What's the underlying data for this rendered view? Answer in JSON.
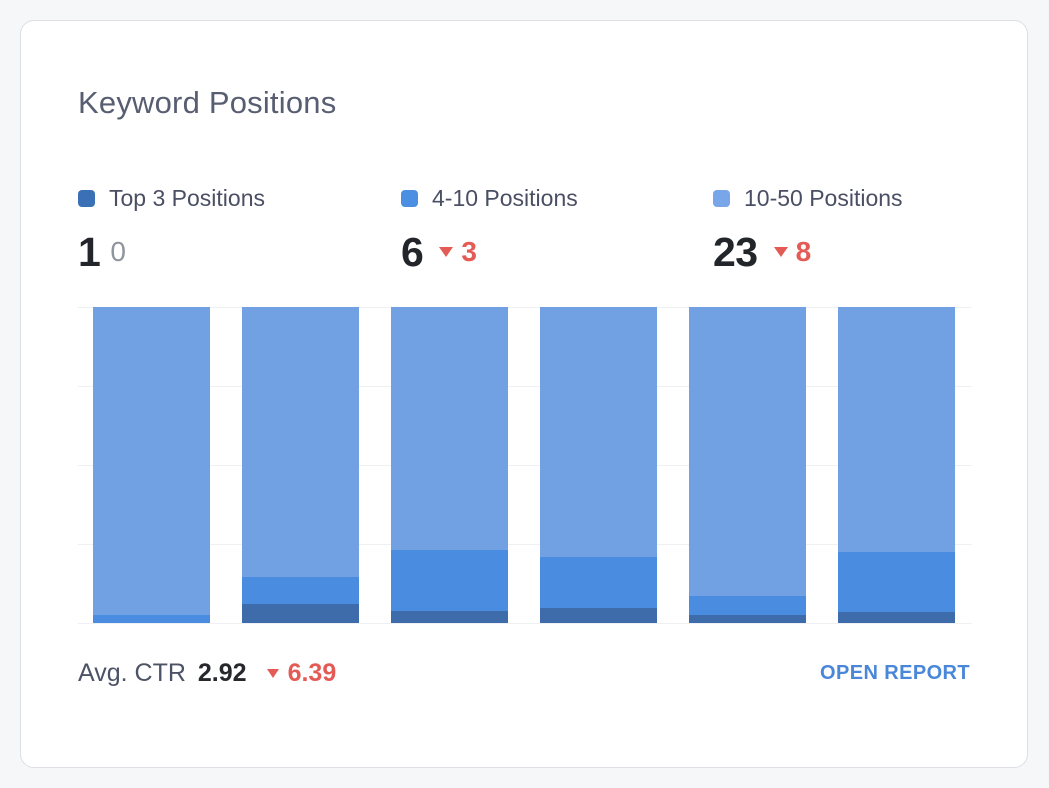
{
  "card": {
    "title": "Keyword Positions"
  },
  "legend": [
    {
      "label": "Top 3 Positions",
      "color": "#3a70b5"
    },
    {
      "label": "4-10 Positions",
      "color": "#4a8fe2"
    },
    {
      "label": "10-50 Positions",
      "color": "#78a6e8"
    }
  ],
  "stats": [
    {
      "value": "1",
      "change": "0",
      "direction": "none"
    },
    {
      "value": "6",
      "change": "3",
      "direction": "down"
    },
    {
      "value": "23",
      "change": "8",
      "direction": "down"
    }
  ],
  "footer": {
    "label": "Avg. CTR",
    "value": "2.92",
    "change": "6.39",
    "direction": "down",
    "link": "OPEN REPORT"
  },
  "colors": {
    "accent_blue": "#4a87d9",
    "negative_red": "#e45b55",
    "neutral_gray": "#8f959d"
  },
  "chart_data": {
    "type": "bar",
    "stacked": true,
    "title": "Keyword Positions",
    "xlabel": "",
    "ylabel": "",
    "axis_labels_visible": false,
    "grid": true,
    "gridline_count": 5,
    "legend_position": "top",
    "categories": [
      "bar-1",
      "bar-2",
      "bar-3",
      "bar-4",
      "bar-5",
      "bar-6"
    ],
    "series": [
      {
        "name": "Top 3 Positions",
        "color": "#3e6cab",
        "values_pct": [
          0,
          6.0,
          3.8,
          4.8,
          2.5,
          3.5
        ]
      },
      {
        "name": "4-10 Positions",
        "color": "#4a8ce0",
        "values_pct": [
          2.5,
          8.6,
          19.3,
          16.1,
          6.0,
          19.0
        ]
      },
      {
        "name": "10-50 Positions",
        "color": "#72a1e3",
        "values_pct": [
          97.5,
          85.4,
          76.9,
          79.1,
          91.5,
          77.5
        ]
      }
    ],
    "latest_values": {
      "top3": 1,
      "pos4_10": 6,
      "pos10_50": 23
    }
  }
}
